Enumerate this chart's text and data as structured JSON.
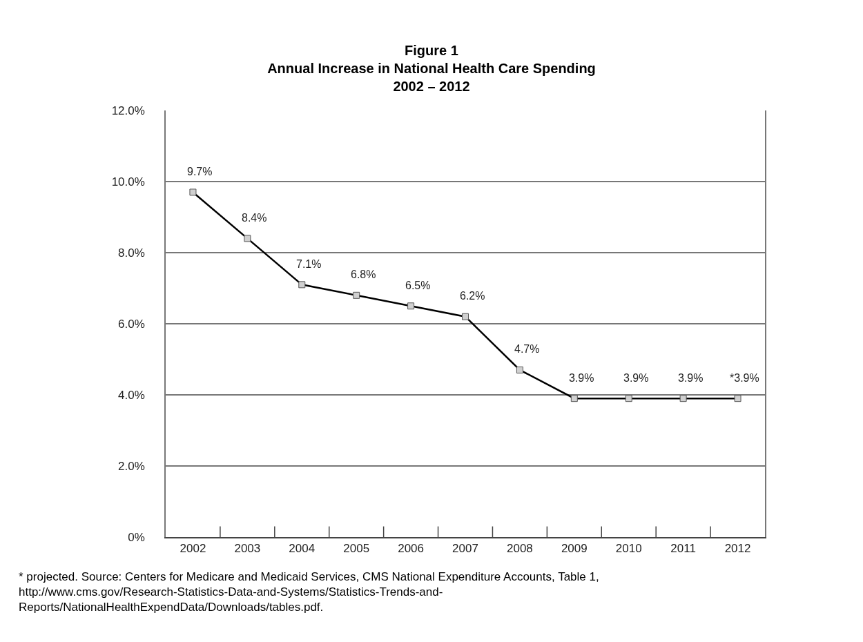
{
  "chart_data": {
    "type": "line",
    "title": "Figure 1\nAnnual Increase in National Health Care Spending\n2002 – 2012",
    "categories": [
      "2002",
      "2003",
      "2004",
      "2005",
      "2006",
      "2007",
      "2008",
      "2009",
      "2010",
      "2011",
      "2012"
    ],
    "series": [
      {
        "color": "#000000",
        "values": [
          9.7,
          8.4,
          7.1,
          6.8,
          6.5,
          6.2,
          4.7,
          3.9,
          3.9,
          3.9,
          3.9
        ],
        "value_labels": [
          "9.7%",
          "8.4%",
          "7.1%",
          "6.8%",
          "6.5%",
          "6.2%",
          "4.7%",
          "3.9%",
          "3.9%",
          "3.9%",
          "*3.9%"
        ]
      }
    ],
    "ylim": [
      0,
      12
    ],
    "yticks": [
      {
        "value": 0,
        "label": "0%"
      },
      {
        "value": 2,
        "label": "2.0%"
      },
      {
        "value": 4,
        "label": "4.0%"
      },
      {
        "value": 6,
        "label": "6.0%"
      },
      {
        "value": 8,
        "label": "8.0%"
      },
      {
        "value": 10,
        "label": "10.0%"
      },
      {
        "value": 12,
        "label": "12.0%"
      }
    ],
    "grid": "y",
    "marker": "square",
    "line_style": "solid",
    "annotations": [
      "* projected. Source: Centers for Medicare and Medicaid Services, CMS National Expenditure Accounts, Table 1,",
      "http://www.cms.gov/Research-Statistics-Data-and-Systems/Statistics-Trends-and-",
      "Reports/NationalHealthExpendData/Downloads/tables.pdf."
    ]
  }
}
